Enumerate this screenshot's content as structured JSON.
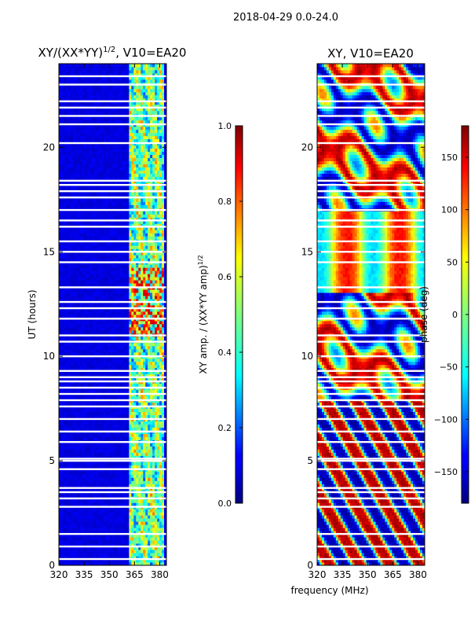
{
  "suptitle": "2018-04-29 0.0-24.0",
  "chart_data": [
    {
      "type": "heatmap",
      "title_base": "XY/(XX*YY)",
      "title_exp": "1/2",
      "title_tail": ", V10=EA20",
      "xlabel": "",
      "ylabel": "UT (hours)",
      "xlim": [
        320,
        384
      ],
      "ylim": [
        0,
        24
      ],
      "xticks": [
        320,
        335,
        350,
        365,
        380
      ],
      "yticks": [
        0,
        5,
        10,
        15,
        20
      ],
      "pattern": "amplitude",
      "colorbar": {
        "label_base": "XY amp. / (XX*YY amp)",
        "label_exp": "1/2",
        "range": [
          0.0,
          1.0
        ],
        "ticks": [
          "0.0",
          "0.2",
          "0.4",
          "0.6",
          "0.8",
          "1.0"
        ],
        "tick_values": [
          0,
          0.2,
          0.4,
          0.6,
          0.8,
          1.0
        ]
      },
      "colormap": "jet",
      "blank_rows_ut": [
        0.3,
        0.9,
        1.5,
        2.8,
        3.2,
        3.5,
        3.7,
        4.6,
        5.0,
        5.1,
        5.9,
        6.4,
        7.0,
        7.6,
        7.9,
        8.2,
        8.5,
        8.8,
        9.0,
        9.3,
        10.0,
        10.7,
        11.0,
        11.8,
        12.3,
        12.6,
        13.3,
        14.5,
        15.0,
        15.5,
        16.2,
        16.5,
        17.0,
        17.6,
        17.9,
        18.2,
        18.4,
        20.2,
        21.1,
        21.5,
        21.9,
        22.2,
        23.0,
        23.4
      ]
    },
    {
      "type": "heatmap",
      "title_base": "XY, V10=EA20",
      "title_exp": "",
      "title_tail": "",
      "xlabel": "frequency (MHz)",
      "ylabel": "",
      "xlim": [
        320,
        384
      ],
      "ylim": [
        0,
        24
      ],
      "xticks": [
        320,
        335,
        350,
        365,
        380
      ],
      "yticks": [
        0,
        5,
        10,
        15,
        20
      ],
      "pattern": "phase",
      "colorbar": {
        "label_base": "phase (deg)",
        "label_exp": "",
        "range": [
          -180,
          180
        ],
        "ticks": [
          "−150",
          "−100",
          "−50",
          "0",
          "50",
          "100",
          "150"
        ],
        "tick_values": [
          -150,
          -100,
          -50,
          0,
          50,
          100,
          150
        ]
      },
      "colormap": "jet",
      "blank_rows_ut": [
        0.3,
        0.9,
        1.5,
        2.8,
        3.2,
        3.5,
        3.7,
        4.6,
        5.0,
        5.1,
        5.9,
        6.4,
        7.0,
        7.6,
        7.9,
        8.2,
        8.5,
        8.8,
        9.0,
        9.3,
        10.0,
        10.7,
        11.0,
        11.8,
        12.3,
        12.6,
        13.3,
        14.5,
        15.0,
        15.5,
        16.2,
        16.5,
        17.0,
        17.6,
        17.9,
        18.2,
        18.4,
        20.2,
        21.1,
        21.5,
        21.9,
        22.2,
        23.0,
        23.4
      ]
    }
  ]
}
